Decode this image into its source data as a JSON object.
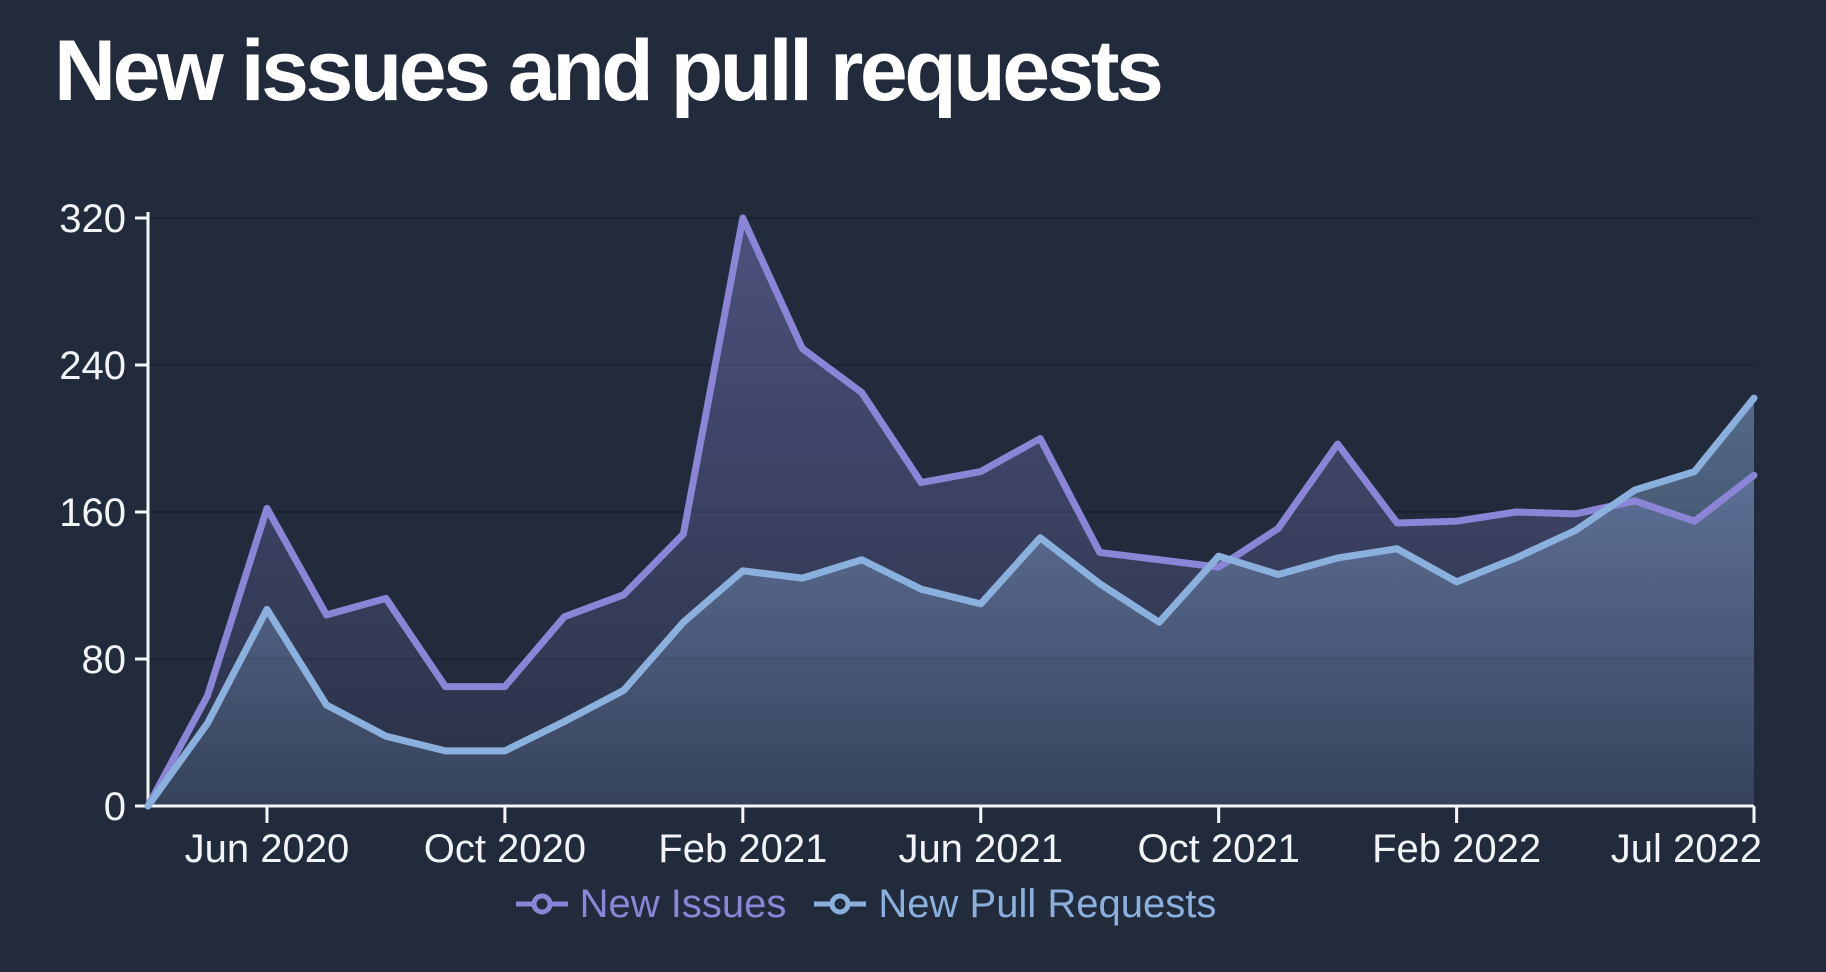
{
  "title": "New issues and pull requests",
  "colors": {
    "background": "#212b3b",
    "grid": "#1a2331",
    "axis": "#f4f6f9",
    "tick_text": "#f2f4f8",
    "issues": "#8b85d7",
    "pull_requests": "#8cb0de"
  },
  "legend": {
    "marker_icon": "line-with-open-circle"
  },
  "chart_data": {
    "type": "area",
    "title": "New issues and pull requests",
    "x": [
      "Apr 2020",
      "May 2020",
      "Jun 2020",
      "Jul 2020",
      "Aug 2020",
      "Sep 2020",
      "Oct 2020",
      "Nov 2020",
      "Dec 2020",
      "Jan 2021",
      "Feb 2021",
      "Mar 2021",
      "Apr 2021",
      "May 2021",
      "Jun 2021",
      "Jul 2021",
      "Aug 2021",
      "Sep 2021",
      "Oct 2021",
      "Nov 2021",
      "Dec 2021",
      "Jan 2022",
      "Feb 2022",
      "Mar 2022",
      "Apr 2022",
      "May 2022",
      "Jun 2022",
      "Jul 2022"
    ],
    "series": [
      {
        "name": "New Issues",
        "color": "#8b85d7",
        "values": [
          0,
          60,
          162,
          104,
          113,
          65,
          65,
          103,
          115,
          148,
          320,
          249,
          225,
          176,
          182,
          200,
          138,
          134,
          130,
          151,
          197,
          154,
          155,
          160,
          159,
          166,
          155,
          180
        ]
      },
      {
        "name": "New Pull Requests",
        "color": "#8cb0de",
        "values": [
          0,
          45,
          107,
          55,
          38,
          30,
          30,
          46,
          63,
          100,
          128,
          124,
          134,
          118,
          110,
          146,
          121,
          100,
          136,
          126,
          135,
          140,
          122,
          135,
          150,
          172,
          182,
          222
        ]
      }
    ],
    "x_tick_labels": [
      "Jun 2020",
      "Oct 2020",
      "Feb 2021",
      "Jun 2021",
      "Oct 2021",
      "Feb 2022",
      "Jul 2022"
    ],
    "x_tick_indices": [
      2,
      6,
      10,
      14,
      18,
      22,
      27
    ],
    "y_ticks": [
      0,
      80,
      160,
      240,
      320
    ],
    "ylim": [
      0,
      320
    ],
    "grid": "horizontal-only",
    "legend_position": "bottom-center"
  }
}
